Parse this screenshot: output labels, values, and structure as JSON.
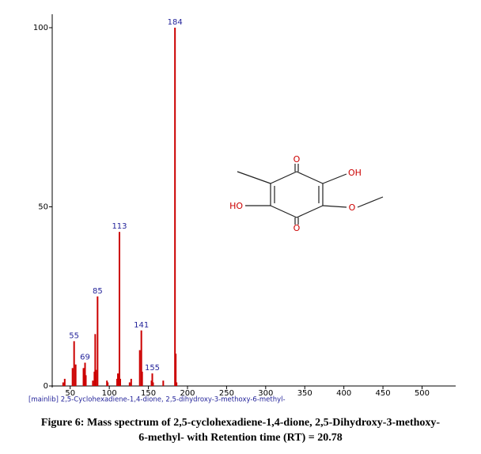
{
  "chart_data": {
    "type": "spectrum",
    "color": "#cc0000",
    "label_color": "#23239a",
    "x": [
      41,
      43,
      53,
      55,
      57,
      67,
      69,
      70,
      79,
      81,
      82,
      83,
      85,
      97,
      98,
      110,
      111,
      113,
      114,
      126,
      128,
      139,
      141,
      142,
      154,
      155,
      156,
      169,
      184,
      185,
      186
    ],
    "values": [
      1,
      2,
      5,
      12.5,
      6,
      5,
      6.5,
      3,
      1.5,
      4,
      14.5,
      4.5,
      25,
      1.5,
      1,
      2,
      3.5,
      43,
      2,
      1,
      2,
      10,
      15.5,
      4,
      1.5,
      3.5,
      1,
      1.5,
      100,
      9,
      1
    ],
    "x_labels": [
      null,
      null,
      null,
      "55",
      null,
      null,
      "69",
      null,
      null,
      null,
      null,
      null,
      "85",
      null,
      null,
      null,
      null,
      "113",
      null,
      null,
      null,
      null,
      "141",
      null,
      null,
      "155",
      null,
      null,
      "184",
      null,
      null
    ],
    "xlim": [
      27,
      542
    ],
    "ylim": [
      0,
      100
    ],
    "xticks": [
      50,
      100,
      150,
      200,
      250,
      300,
      350,
      400,
      450,
      500
    ],
    "yticks": [
      0,
      50,
      100
    ],
    "library_note": "[mainlib] 2,5-Cyclohexadiene-1,4-dione, 2,5-dihydroxy-3-methoxy-6-methyl-"
  },
  "structure": {
    "labels": [
      "O",
      "OH",
      "HO",
      "O",
      "O"
    ]
  },
  "caption": [
    "Figure 6: Mass spectrum of 2,5-cyclohexadiene-1,4-dione, 2,5-Dihydroxy-3-methoxy-",
    "6-methyl- with Retention time (RT) = 20.78"
  ]
}
